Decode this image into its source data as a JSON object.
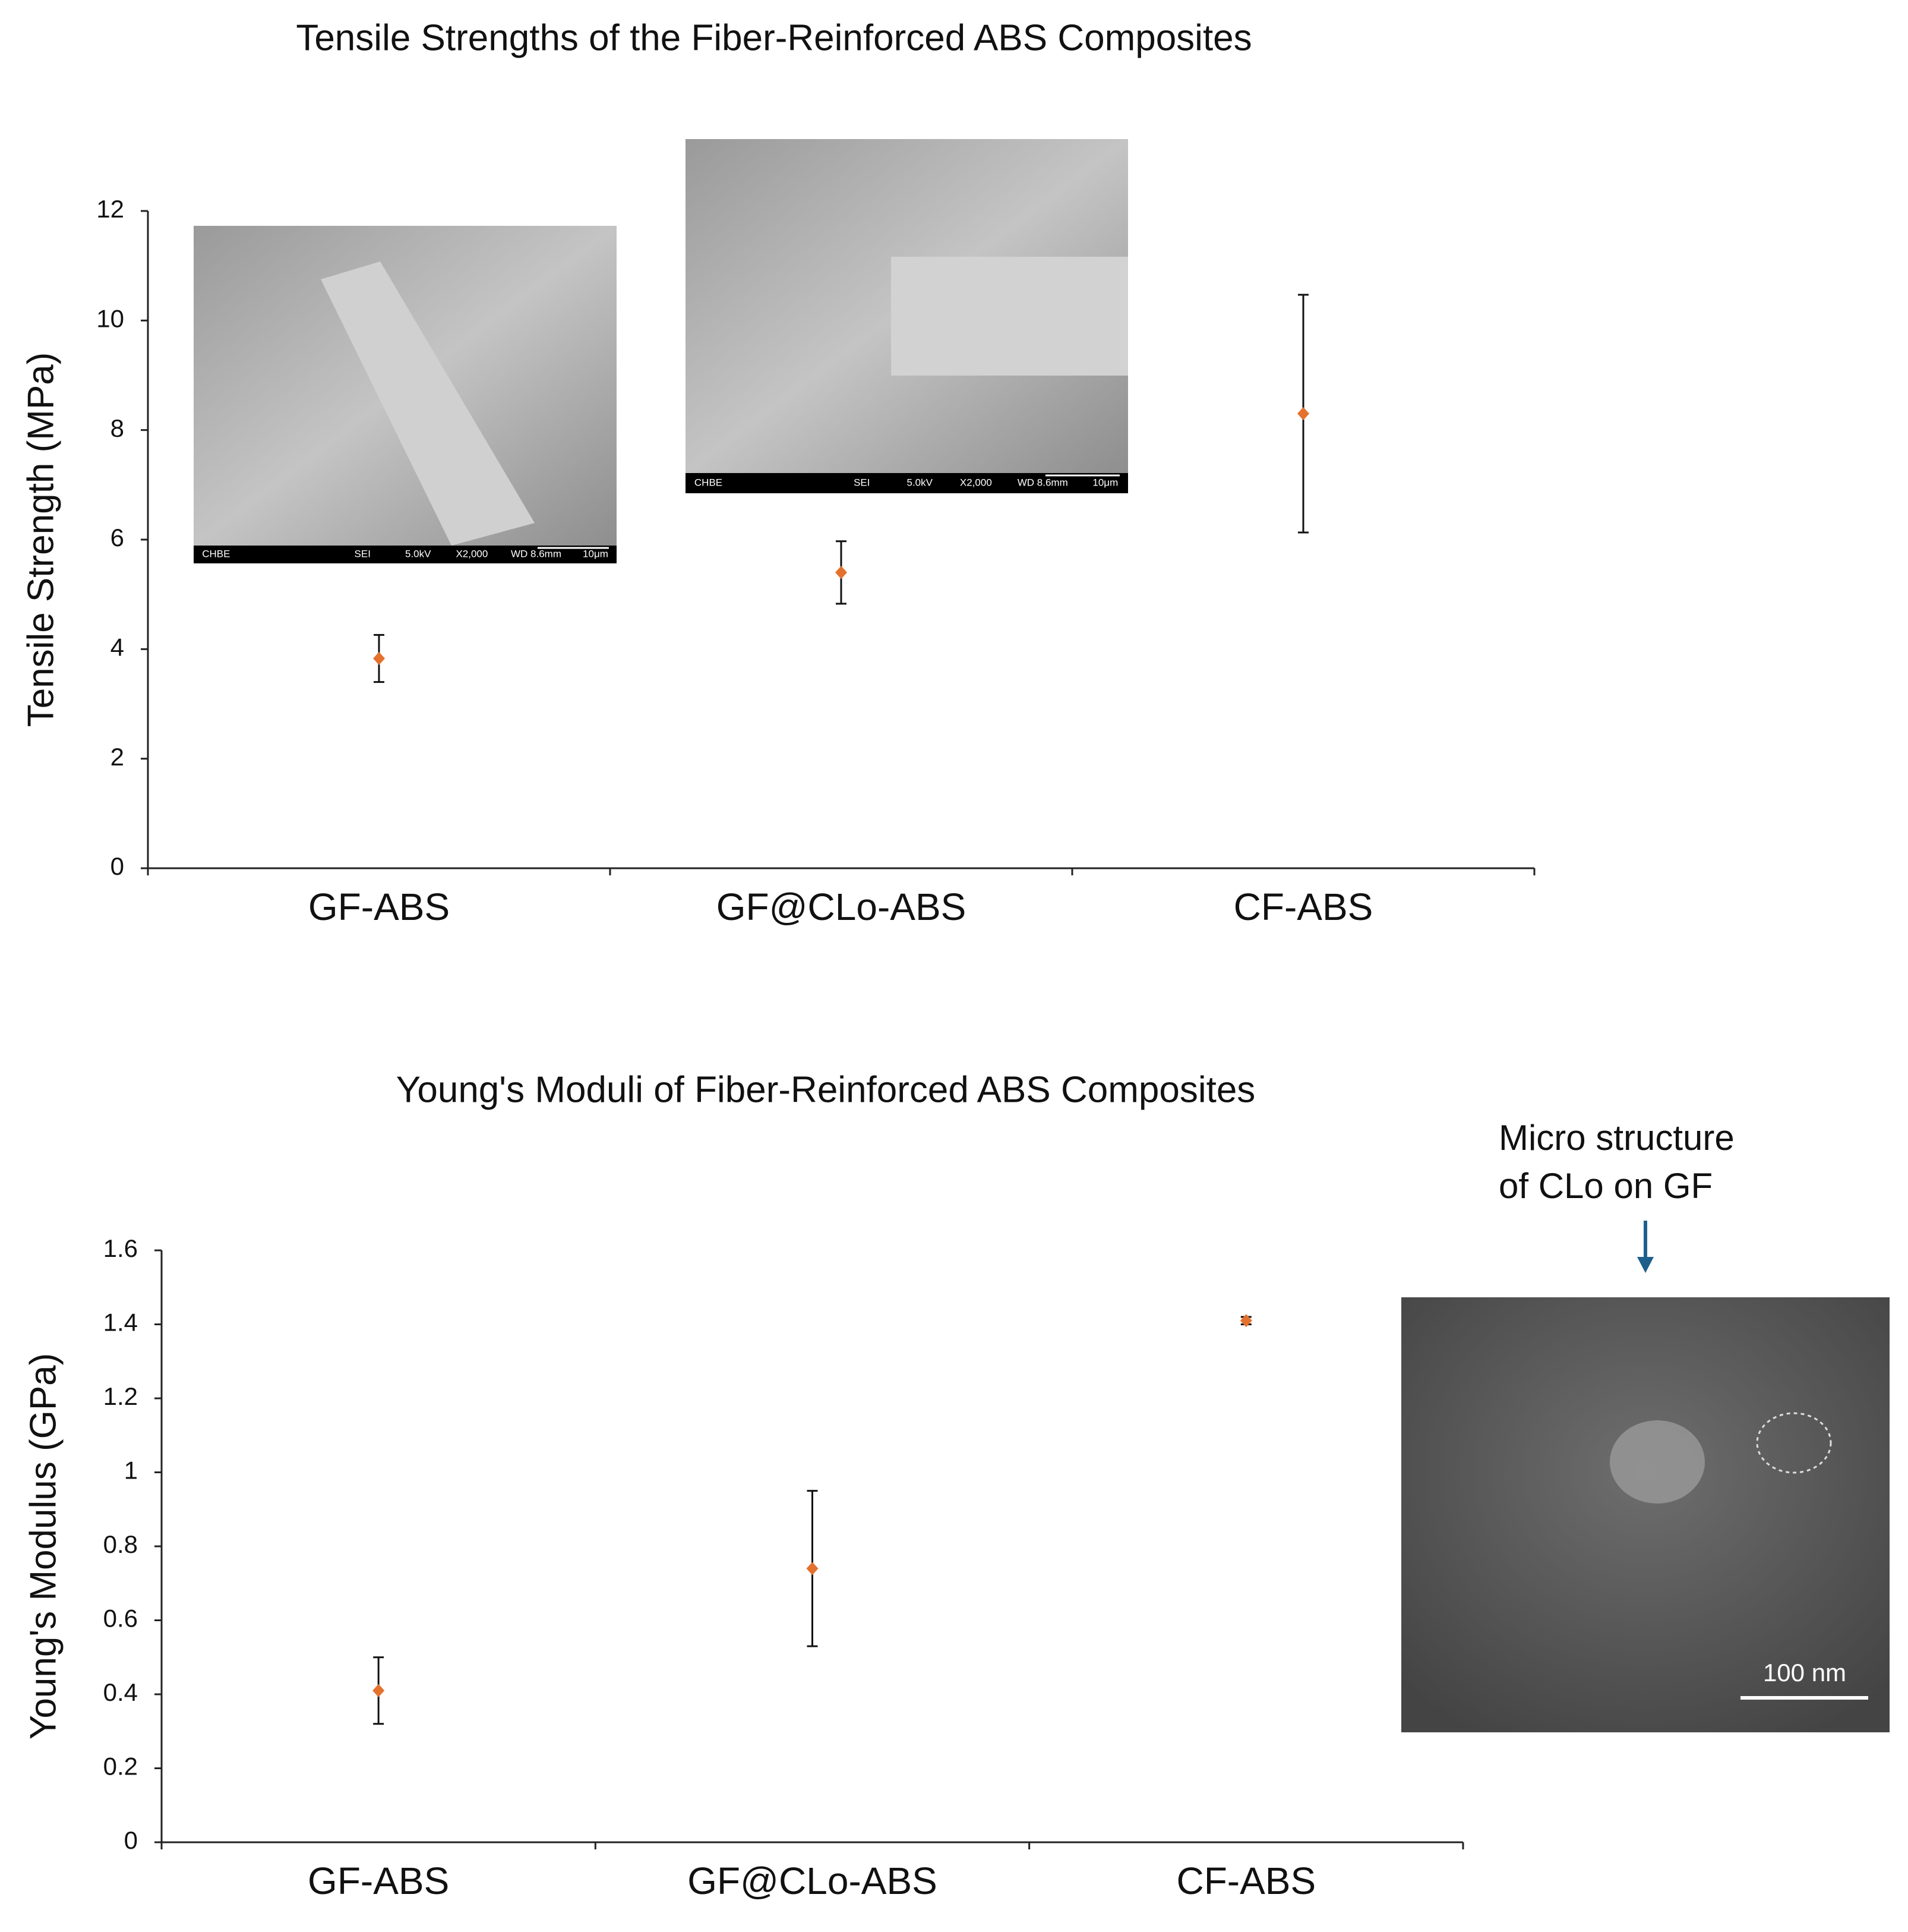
{
  "chart_data": [
    {
      "type": "point",
      "title": "Tensile Strengths of the Fiber-Reinforced ABS Composites",
      "y_label": "Tensile Strength (MPa)",
      "categories": [
        "GF-ABS",
        "GF@CLo-ABS",
        "CF-ABS"
      ],
      "series": [
        {
          "color": "#e4712e",
          "values": [
            3.83,
            5.4,
            8.3
          ],
          "errors": [
            0.43,
            0.57,
            2.17
          ]
        }
      ],
      "ylim": [
        0,
        12
      ],
      "yticks": [
        0,
        2,
        4,
        6,
        8,
        10,
        12
      ]
    },
    {
      "type": "point",
      "title": "Young's Moduli of Fiber-Reinforced ABS Composites",
      "y_label": "Young's Modulus (GPa)",
      "categories": [
        "GF-ABS",
        "GF@CLo-ABS",
        "CF-ABS"
      ],
      "series": [
        {
          "color": "#e4712e",
          "values": [
            0.41,
            0.74,
            1.41
          ],
          "errors": [
            0.09,
            0.21,
            0.01
          ]
        }
      ],
      "ylim": [
        0,
        1.6
      ],
      "yticks": [
        0,
        0.2,
        0.4,
        0.6,
        0.8,
        1,
        1.2,
        1.4,
        1.6
      ]
    }
  ],
  "sem_images": [
    {
      "labels": [
        "CHBE",
        "SEI",
        "5.0kV",
        "X2,000",
        "WD 8.6mm",
        "10μm"
      ]
    },
    {
      "labels": [
        "CHBE",
        "SEI",
        "5.0kV",
        "X2,000",
        "WD 8.6mm",
        "10μm"
      ]
    }
  ],
  "annotation": {
    "lines": [
      "Micro structure",
      "of CLo on GF"
    ],
    "scale_bar": "100 nm"
  }
}
